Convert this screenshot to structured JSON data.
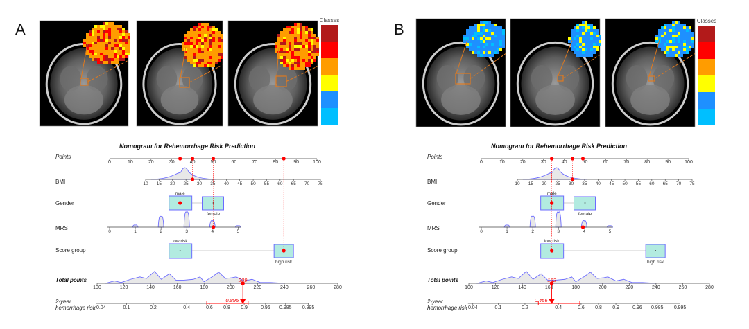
{
  "panels": [
    {
      "label": "A",
      "legend_title": "Classes",
      "legend_colors": [
        "#b21a1a",
        "#ff0000",
        "#ff9c00",
        "#ffff00",
        "#1e90ff",
        "#00bfff"
      ],
      "overlay_palette": [
        "#ff9c00",
        "#ff0000",
        "#b21a1a",
        "#ffff00"
      ],
      "nomogram": {
        "title": "Nomogram for Rehemorrhage Risk Prediction",
        "rows": {
          "points": "Points",
          "bmi": "BMI",
          "gender": "Gender",
          "mrs": "MRS",
          "score_group": "Score group",
          "total_points": "Total points",
          "risk_line1": "2-year",
          "risk_line2": "hemorrhage risk"
        },
        "gender_levels": [
          "male",
          "female"
        ],
        "score_levels": [
          "low risk",
          "high risk"
        ],
        "selected": {
          "bmi": 27.5,
          "bmi_points": 40,
          "gender": "male",
          "gender_points": 34,
          "mrs": 4,
          "mrs_points": 50,
          "score_group": "high risk",
          "score_points": 84
        },
        "total_points_value": "209",
        "risk_value": "0.895",
        "risk_ci": [
          0.79,
          0.96
        ]
      }
    },
    {
      "label": "B",
      "legend_title": "Classes",
      "legend_colors": [
        "#b21a1a",
        "#ff0000",
        "#ff9c00",
        "#ffff00",
        "#1e90ff",
        "#00bfff"
      ],
      "overlay_palette": [
        "#1e90ff",
        "#00bfff",
        "#ffff00",
        "#1e90ff"
      ],
      "nomogram": {
        "title": "Nomogram for Rehemorrhage Risk Prediction",
        "rows": {
          "points": "Points",
          "bmi": "BMI",
          "gender": "Gender",
          "mrs": "MRS",
          "score_group": "Score group",
          "total_points": "Total points",
          "risk_line1": "2-year",
          "risk_line2": "hemorrhage risk"
        },
        "gender_levels": [
          "male",
          "female"
        ],
        "score_levels": [
          "low risk",
          "high risk"
        ],
        "selected": {
          "bmi": 31,
          "bmi_points": 44,
          "gender": "male",
          "gender_points": 34,
          "mrs": 4,
          "mrs_points": 49,
          "score_group": "low risk",
          "score_points": 34
        },
        "total_points_value": "162",
        "risk_value": "0.456",
        "risk_ci": [
          0.23,
          0.67
        ]
      }
    }
  ],
  "chart_data": [
    {
      "type": "nomogram",
      "title": "Nomogram for Rehemorrhage Risk Prediction",
      "axes": {
        "points": {
          "ticks": [
            "0",
            "10",
            "20",
            "30",
            "40",
            "50",
            "60",
            "70",
            "80",
            "90",
            "100"
          ],
          "range": [
            0,
            100
          ]
        },
        "bmi": {
          "ticks": [
            "10",
            "15",
            "20",
            "25",
            "30",
            "35",
            "40",
            "45",
            "50",
            "55",
            "60",
            "65",
            "70",
            "75"
          ],
          "range": [
            10,
            75
          ]
        },
        "mrs": {
          "ticks": [
            "0",
            "1",
            "2",
            "3",
            "4",
            "5"
          ],
          "range": [
            0,
            5
          ]
        },
        "total_points": {
          "ticks": [
            "100",
            "120",
            "140",
            "160",
            "180",
            "200",
            "220",
            "240",
            "260",
            "280"
          ],
          "range": [
            100,
            280
          ]
        },
        "risk": {
          "ticks": [
            "0.04",
            "0.1",
            "0.2",
            "0.4",
            "0.6",
            "0.8",
            "0.9",
            "0.96",
            "0.985",
            "0.995"
          ]
        }
      },
      "instance": "A",
      "total_points": 209,
      "risk": 0.895
    },
    {
      "type": "nomogram",
      "title": "Nomogram for Rehemorrhage Risk Prediction",
      "axes": {
        "points": {
          "ticks": [
            "0",
            "10",
            "20",
            "30",
            "40",
            "50",
            "60",
            "70",
            "80",
            "90",
            "100"
          ],
          "range": [
            0,
            100
          ]
        },
        "bmi": {
          "ticks": [
            "10",
            "15",
            "20",
            "25",
            "30",
            "35",
            "40",
            "45",
            "50",
            "55",
            "60",
            "65",
            "70",
            "75"
          ],
          "range": [
            10,
            75
          ]
        },
        "mrs": {
          "ticks": [
            "0",
            "1",
            "2",
            "3",
            "4",
            "5"
          ],
          "range": [
            0,
            5
          ]
        },
        "total_points": {
          "ticks": [
            "100",
            "120",
            "140",
            "160",
            "180",
            "200",
            "220",
            "240",
            "260",
            "280"
          ],
          "range": [
            100,
            280
          ]
        },
        "risk": {
          "ticks": [
            "0.04",
            "0.1",
            "0.2",
            "0.4",
            "0.6",
            "0.8",
            "0.9",
            "0.96",
            "0.985",
            "0.995"
          ]
        }
      },
      "instance": "B",
      "total_points": 162,
      "risk": 0.456
    }
  ]
}
